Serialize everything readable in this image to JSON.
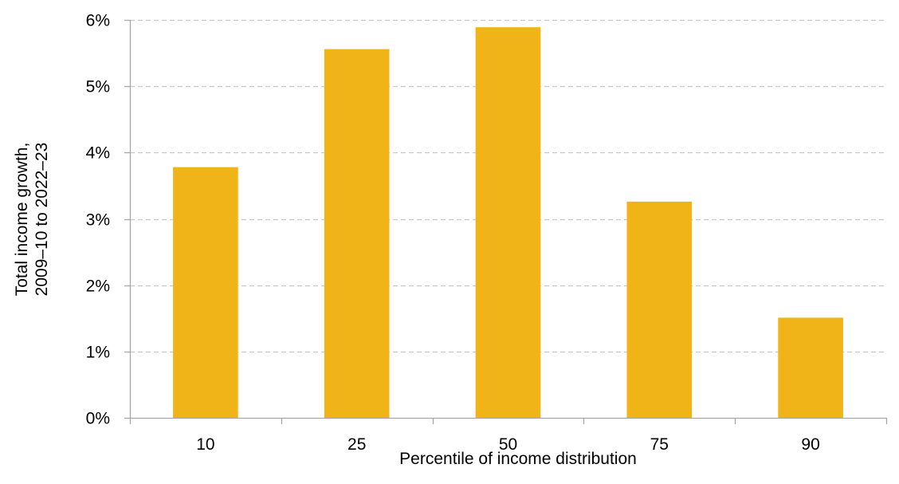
{
  "chart_data": {
    "type": "bar",
    "title": "",
    "xlabel": "Percentile of income distribution",
    "ylabel_lines": [
      "Total income growth,",
      "2009–10 to 2022–23"
    ],
    "categories": [
      "10",
      "25",
      "50",
      "75",
      "90"
    ],
    "values": [
      3.78,
      5.56,
      5.89,
      3.26,
      1.51
    ],
    "value_unit": "%",
    "ylim": [
      0,
      6
    ],
    "yticks": [
      0,
      1,
      2,
      3,
      4,
      5,
      6
    ],
    "ytick_labels": [
      "0%",
      "1%",
      "2%",
      "3%",
      "4%",
      "5%",
      "6%"
    ],
    "grid": true,
    "legend": "none",
    "bar_color": "#F0B418",
    "grid_color": "#C8C8C8",
    "axis_color": "#A6A6A6"
  }
}
